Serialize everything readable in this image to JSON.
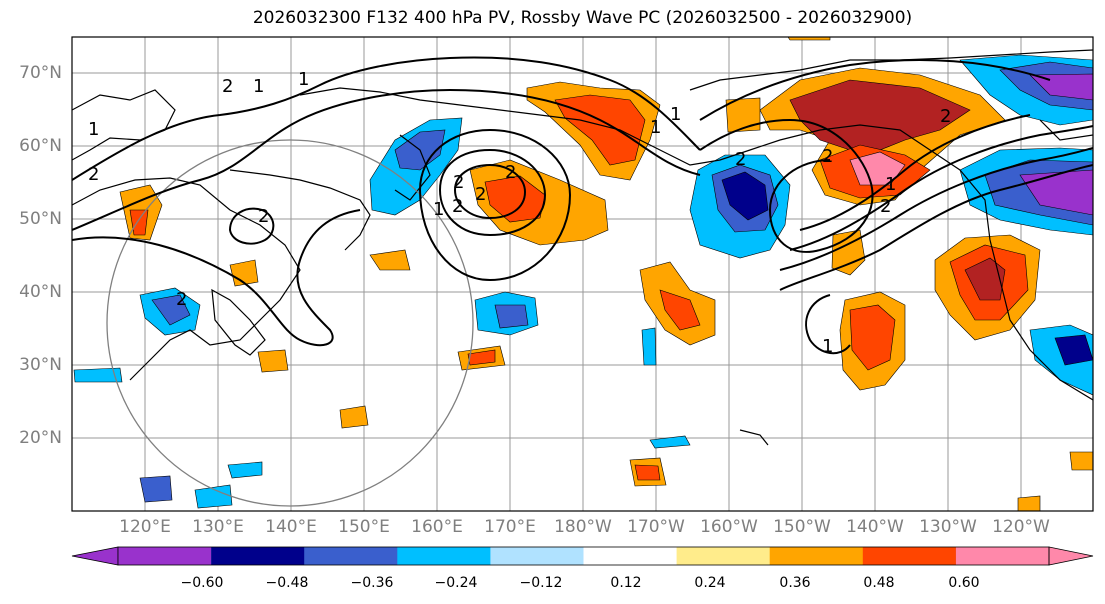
{
  "title": "2026032300 F132 400 hPa PV, Rossby Wave PC (2026032500 - 2026032900)",
  "lat_labels": [
    "70°N",
    "60°N",
    "50°N",
    "40°N",
    "30°N",
    "20°N"
  ],
  "lon_labels": [
    "120°E",
    "130°E",
    "140°E",
    "150°E",
    "160°E",
    "170°E",
    "180°W",
    "170°W",
    "160°W",
    "150°W",
    "140°W",
    "130°W",
    "120°W"
  ],
  "colorbar": {
    "ticks": [
      "−0.60",
      "−0.48",
      "−0.36",
      "−0.24",
      "−0.12",
      "0.12",
      "0.24",
      "0.36",
      "0.48",
      "0.60"
    ],
    "colors": [
      "#9932cc",
      "#00008b",
      "#3a5fcd",
      "#00bfff",
      "#b0e2ff",
      "#ffffff",
      "#ffec8b",
      "#ffa500",
      "#ff4500",
      "#b22222",
      "#ff88aa"
    ]
  },
  "contour_labels": [
    "1",
    "2",
    "2",
    "1",
    "2",
    "1",
    "2",
    "2",
    "2",
    "1",
    "1",
    "2",
    "2",
    "1",
    "2",
    "1",
    "2",
    "1",
    "2",
    "2"
  ]
}
